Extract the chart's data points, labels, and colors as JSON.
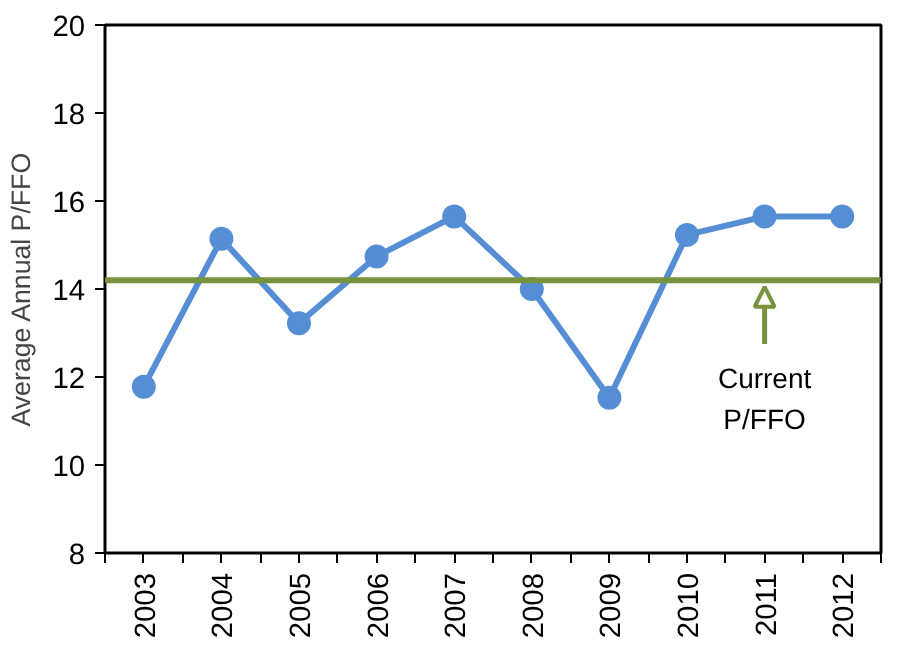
{
  "chart_data": {
    "type": "line",
    "ylabel": "Average Annual P/FFO",
    "categories": [
      "2003",
      "2004",
      "2005",
      "2006",
      "2007",
      "2008",
      "2009",
      "2010",
      "2011",
      "2012"
    ],
    "series": [
      {
        "color": "#558ed5",
        "values": [
          11.78,
          15.14,
          13.22,
          14.74,
          15.65,
          14.0,
          11.53,
          15.23,
          15.65,
          15.65
        ]
      }
    ],
    "ylim": [
      8,
      20
    ],
    "yticks": [
      8,
      10,
      12,
      14,
      16,
      18,
      20
    ],
    "grid": false,
    "marker": "circle",
    "line_style": "solid",
    "ref_lines": [
      {
        "axis": "y",
        "value": 14.2,
        "color": "#77933c"
      }
    ],
    "annotations": [
      {
        "text": "Current\nP/FFO",
        "x": "2011",
        "y": 14.2
      }
    ]
  }
}
